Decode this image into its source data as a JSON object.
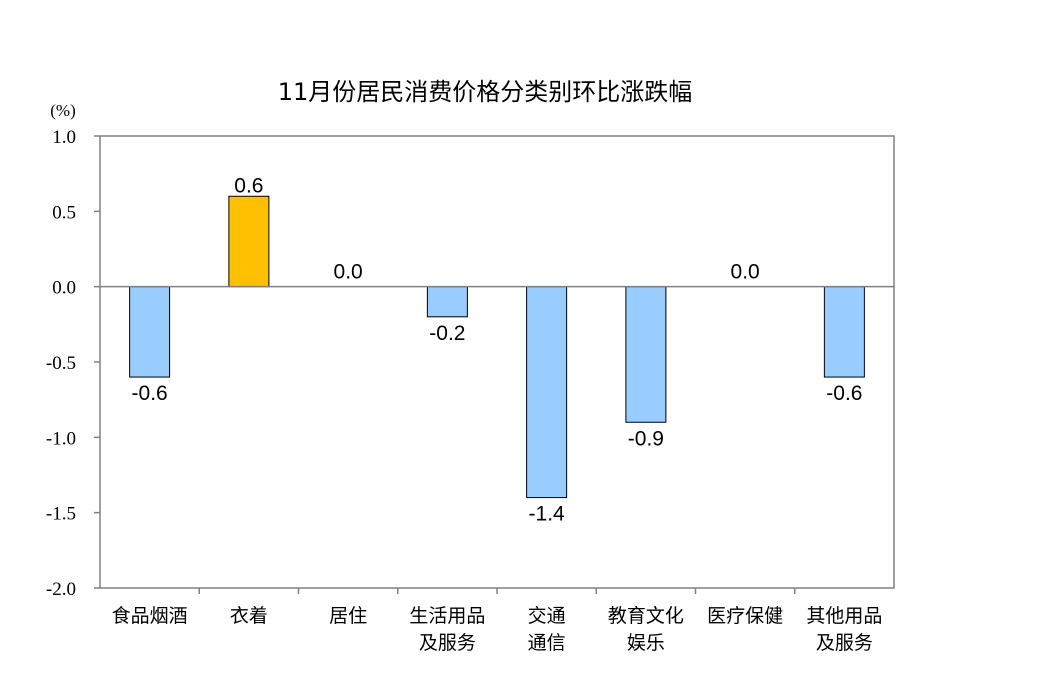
{
  "chart_data": {
    "type": "bar",
    "title": "11月份居民消费价格分类别环比涨跌幅",
    "unit_label": "(%)",
    "categories": [
      [
        "食品烟酒"
      ],
      [
        "衣着"
      ],
      [
        "居住"
      ],
      [
        "生活用品",
        "及服务"
      ],
      [
        "交通",
        "通信"
      ],
      [
        "教育文化",
        "娱乐"
      ],
      [
        "医疗保健"
      ],
      [
        "其他用品",
        "及服务"
      ]
    ],
    "values": [
      -0.6,
      0.6,
      0.0,
      -0.2,
      -1.4,
      -0.9,
      0.0,
      -0.6
    ],
    "data_labels": [
      "-0.6",
      "0.6",
      "0.0",
      "-0.2",
      "-1.4",
      "-0.9",
      "0.0",
      "-0.6"
    ],
    "ylim": [
      -2.0,
      1.0
    ],
    "yticks": [
      "1.0",
      "0.5",
      "0.0",
      "-0.5",
      "-1.0",
      "-1.5",
      "-2.0"
    ],
    "ytick_values": [
      1.0,
      0.5,
      0.0,
      -0.5,
      -1.0,
      -1.5,
      -2.0
    ],
    "grid": false,
    "colors": {
      "negative": "#99ccff",
      "positive": "#ffc000",
      "bar_outline": "#000000",
      "axis": "#808080"
    }
  }
}
